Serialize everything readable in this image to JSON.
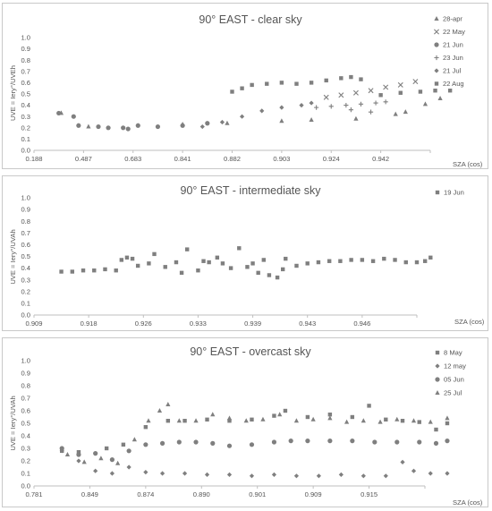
{
  "chart_data": [
    {
      "type": "scatter",
      "title": "90° EAST - clear sky",
      "ylabel": "UVE = Iery°/UVEh",
      "xlabel": "SZA (cos)",
      "ylim": [
        0,
        1.0
      ],
      "yticks": [
        "0.0",
        "0.1",
        "0.2",
        "0.3",
        "0.4",
        "0.5",
        "0.6",
        "0.7",
        "0.8",
        "0.9",
        "1.0"
      ],
      "xticks": [
        "0.188",
        "0.487",
        "0.683",
        "0.841",
        "0.882",
        "0.903",
        "0.924",
        "0.942"
      ],
      "legend_position": "right",
      "series": [
        {
          "name": "28-apr",
          "marker": "triangle",
          "points": [
            [
              0.05,
              0.33
            ],
            [
              0.6,
              0.21
            ],
            [
              2.5,
              0.23
            ],
            [
              3.4,
              0.24
            ],
            [
              4.5,
              0.26
            ],
            [
              5.1,
              0.27
            ],
            [
              6.0,
              0.28
            ],
            [
              6.8,
              0.32
            ],
            [
              7.0,
              0.34
            ],
            [
              7.4,
              0.41
            ],
            [
              7.7,
              0.46
            ]
          ]
        },
        {
          "name": "22 May",
          "marker": "x",
          "points": [
            [
              5.4,
              0.47
            ],
            [
              5.7,
              0.49
            ],
            [
              6.0,
              0.51
            ],
            [
              6.3,
              0.53
            ],
            [
              6.6,
              0.56
            ],
            [
              6.9,
              0.58
            ],
            [
              7.2,
              0.61
            ]
          ]
        },
        {
          "name": "21 Jun",
          "marker": "circle",
          "points": [
            [
              0.0,
              0.33
            ],
            [
              0.3,
              0.3
            ],
            [
              0.4,
              0.22
            ],
            [
              0.8,
              0.21
            ],
            [
              1.0,
              0.2
            ],
            [
              1.3,
              0.2
            ],
            [
              1.4,
              0.19
            ],
            [
              1.6,
              0.22
            ],
            [
              2.0,
              0.21
            ],
            [
              2.5,
              0.22
            ],
            [
              3.0,
              0.24
            ]
          ]
        },
        {
          "name": "23 Jun",
          "marker": "plus",
          "points": [
            [
              5.2,
              0.38
            ],
            [
              5.5,
              0.39
            ],
            [
              5.8,
              0.4
            ],
            [
              6.1,
              0.41
            ],
            [
              6.4,
              0.42
            ],
            [
              6.6,
              0.43
            ],
            [
              5.9,
              0.36
            ],
            [
              6.3,
              0.34
            ]
          ]
        },
        {
          "name": "21 Jul",
          "marker": "diamond",
          "points": [
            [
              2.9,
              0.21
            ],
            [
              3.3,
              0.25
            ],
            [
              3.7,
              0.3
            ],
            [
              4.1,
              0.35
            ],
            [
              4.5,
              0.38
            ],
            [
              4.9,
              0.4
            ],
            [
              5.1,
              0.42
            ]
          ]
        },
        {
          "name": "22 Aug",
          "marker": "square",
          "points": [
            [
              3.5,
              0.52
            ],
            [
              3.7,
              0.55
            ],
            [
              3.9,
              0.58
            ],
            [
              4.2,
              0.59
            ],
            [
              4.5,
              0.6
            ],
            [
              4.8,
              0.59
            ],
            [
              5.1,
              0.6
            ],
            [
              5.4,
              0.62
            ],
            [
              5.7,
              0.64
            ],
            [
              5.9,
              0.65
            ],
            [
              6.1,
              0.63
            ],
            [
              6.5,
              0.49
            ],
            [
              6.9,
              0.51
            ],
            [
              7.3,
              0.52
            ],
            [
              7.6,
              0.53
            ],
            [
              7.9,
              0.53
            ]
          ]
        }
      ]
    },
    {
      "type": "scatter",
      "title": "90° EAST - intermediate sky",
      "ylabel": "UVE = Iery°/UVAh",
      "xlabel": "SZA (cos)",
      "ylim": [
        0,
        1.0
      ],
      "yticks": [
        "0.0",
        "0.1",
        "0.2",
        "0.3",
        "0.4",
        "0.5",
        "0.6",
        "0.7",
        "0.8",
        "0.9",
        "1.0"
      ],
      "xticks": [
        "0.909",
        "0.918",
        "0.926",
        "0.933",
        "0.939",
        "0.943",
        "0.946"
      ],
      "legend_position": "right",
      "series": [
        {
          "name": "19 Jun",
          "marker": "square",
          "points": [
            [
              0.0,
              0.37
            ],
            [
              0.2,
              0.37
            ],
            [
              0.4,
              0.38
            ],
            [
              0.6,
              0.38
            ],
            [
              0.8,
              0.39
            ],
            [
              1.0,
              0.38
            ],
            [
              1.1,
              0.47
            ],
            [
              1.2,
              0.49
            ],
            [
              1.3,
              0.48
            ],
            [
              1.4,
              0.42
            ],
            [
              1.6,
              0.44
            ],
            [
              1.7,
              0.52
            ],
            [
              1.9,
              0.41
            ],
            [
              2.1,
              0.45
            ],
            [
              2.2,
              0.36
            ],
            [
              2.3,
              0.56
            ],
            [
              2.5,
              0.38
            ],
            [
              2.6,
              0.46
            ],
            [
              2.7,
              0.45
            ],
            [
              2.85,
              0.49
            ],
            [
              2.95,
              0.44
            ],
            [
              3.1,
              0.4
            ],
            [
              3.25,
              0.57
            ],
            [
              3.4,
              0.41
            ],
            [
              3.5,
              0.44
            ],
            [
              3.6,
              0.36
            ],
            [
              3.7,
              0.47
            ],
            [
              3.8,
              0.34
            ],
            [
              3.95,
              0.32
            ],
            [
              4.05,
              0.39
            ],
            [
              4.1,
              0.48
            ],
            [
              4.3,
              0.42
            ],
            [
              4.5,
              0.44
            ],
            [
              4.7,
              0.45
            ],
            [
              4.9,
              0.46
            ],
            [
              5.1,
              0.46
            ],
            [
              5.3,
              0.47
            ],
            [
              5.5,
              0.47
            ],
            [
              5.7,
              0.46
            ],
            [
              5.9,
              0.48
            ],
            [
              6.1,
              0.47
            ],
            [
              6.3,
              0.45
            ],
            [
              6.5,
              0.45
            ],
            [
              6.65,
              0.46
            ],
            [
              6.75,
              0.49
            ]
          ]
        }
      ]
    },
    {
      "type": "scatter",
      "title": "90° EAST - overcast sky",
      "ylabel": "UVE = Iery°/UVAh",
      "xlabel": "SZA (cos)",
      "ylim": [
        0,
        1.0
      ],
      "yticks": [
        "0.0",
        "0.1",
        "0.2",
        "0.3",
        "0.4",
        "0.5",
        "0.6",
        "0.7",
        "0.8",
        "0.9",
        "1.0"
      ],
      "xticks": [
        "0.781",
        "0.849",
        "0.874",
        "0.890",
        "0.901",
        "0.909",
        "0.915"
      ],
      "legend_position": "right",
      "series": [
        {
          "name": "8 May",
          "marker": "square",
          "points": [
            [
              0.0,
              0.28
            ],
            [
              0.3,
              0.27
            ],
            [
              0.8,
              0.3
            ],
            [
              1.1,
              0.33
            ],
            [
              1.5,
              0.47
            ],
            [
              1.9,
              0.52
            ],
            [
              2.2,
              0.52
            ],
            [
              2.6,
              0.53
            ],
            [
              3.0,
              0.52
            ],
            [
              3.4,
              0.53
            ],
            [
              3.8,
              0.56
            ],
            [
              4.0,
              0.6
            ],
            [
              4.4,
              0.55
            ],
            [
              4.8,
              0.57
            ],
            [
              5.2,
              0.55
            ],
            [
              5.5,
              0.64
            ],
            [
              5.8,
              0.53
            ],
            [
              6.1,
              0.52
            ],
            [
              6.4,
              0.51
            ],
            [
              6.7,
              0.45
            ],
            [
              6.9,
              0.5
            ]
          ]
        },
        {
          "name": "12 may",
          "marker": "diamond",
          "points": [
            [
              0.0,
              0.28
            ],
            [
              0.3,
              0.2
            ],
            [
              0.6,
              0.12
            ],
            [
              0.9,
              0.1
            ],
            [
              1.2,
              0.15
            ],
            [
              1.5,
              0.11
            ],
            [
              1.8,
              0.1
            ],
            [
              2.2,
              0.1
            ],
            [
              2.6,
              0.09
            ],
            [
              3.0,
              0.09
            ],
            [
              3.4,
              0.08
            ],
            [
              3.8,
              0.09
            ],
            [
              4.2,
              0.08
            ],
            [
              4.6,
              0.08
            ],
            [
              5.0,
              0.09
            ],
            [
              5.4,
              0.08
            ],
            [
              5.8,
              0.08
            ],
            [
              6.1,
              0.19
            ],
            [
              6.3,
              0.12
            ],
            [
              6.6,
              0.1
            ],
            [
              6.9,
              0.1
            ]
          ]
        },
        {
          "name": "05 Jun",
          "marker": "circle",
          "points": [
            [
              0.0,
              0.3
            ],
            [
              0.3,
              0.25
            ],
            [
              0.6,
              0.26
            ],
            [
              0.9,
              0.21
            ],
            [
              1.2,
              0.28
            ],
            [
              1.5,
              0.33
            ],
            [
              1.8,
              0.34
            ],
            [
              2.1,
              0.35
            ],
            [
              2.4,
              0.35
            ],
            [
              2.7,
              0.34
            ],
            [
              3.0,
              0.32
            ],
            [
              3.4,
              0.33
            ],
            [
              3.8,
              0.35
            ],
            [
              4.1,
              0.36
            ],
            [
              4.4,
              0.36
            ],
            [
              4.8,
              0.36
            ],
            [
              5.2,
              0.36
            ],
            [
              5.6,
              0.35
            ],
            [
              6.0,
              0.35
            ],
            [
              6.4,
              0.35
            ],
            [
              6.7,
              0.34
            ],
            [
              6.9,
              0.36
            ]
          ]
        },
        {
          "name": "25 Jul",
          "marker": "triangle",
          "points": [
            [
              0.1,
              0.25
            ],
            [
              0.4,
              0.19
            ],
            [
              0.7,
              0.22
            ],
            [
              1.0,
              0.18
            ],
            [
              1.3,
              0.37
            ],
            [
              1.55,
              0.52
            ],
            [
              1.75,
              0.6
            ],
            [
              1.9,
              0.65
            ],
            [
              2.1,
              0.52
            ],
            [
              2.4,
              0.52
            ],
            [
              2.7,
              0.57
            ],
            [
              3.0,
              0.54
            ],
            [
              3.3,
              0.52
            ],
            [
              3.6,
              0.53
            ],
            [
              3.9,
              0.57
            ],
            [
              4.2,
              0.52
            ],
            [
              4.5,
              0.53
            ],
            [
              4.8,
              0.54
            ],
            [
              5.1,
              0.51
            ],
            [
              5.4,
              0.52
            ],
            [
              5.7,
              0.51
            ],
            [
              6.0,
              0.53
            ],
            [
              6.3,
              0.52
            ],
            [
              6.6,
              0.51
            ],
            [
              6.9,
              0.54
            ]
          ]
        }
      ]
    }
  ]
}
